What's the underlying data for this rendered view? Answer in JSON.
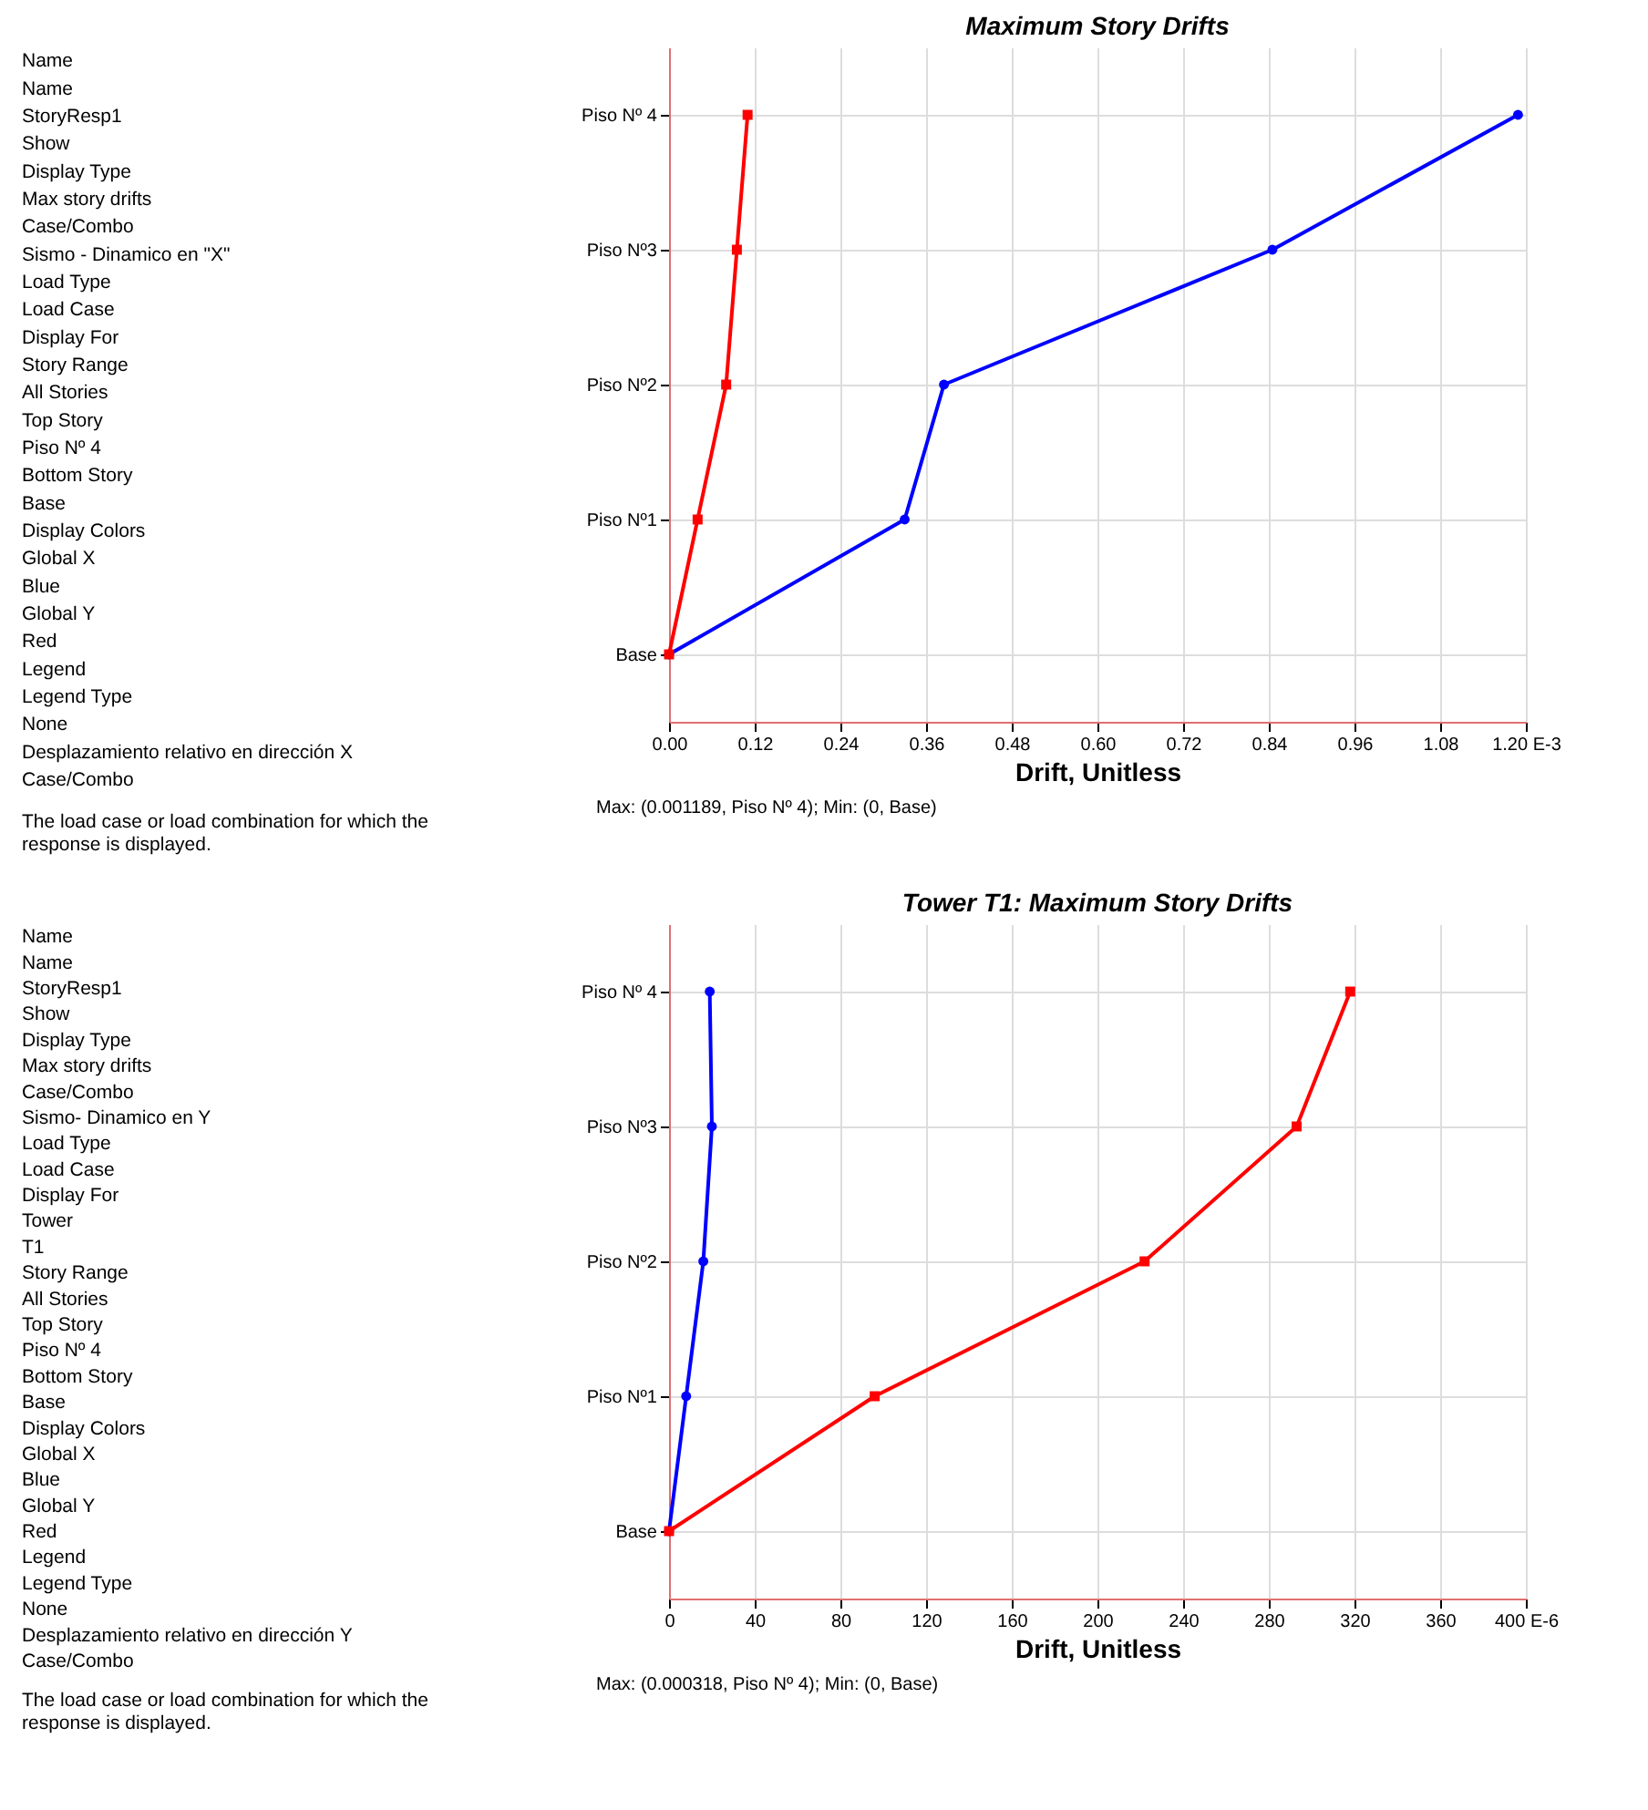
{
  "chart_data": [
    {
      "type": "other",
      "annotations": [
        "Name",
        "Name",
        "StoryResp1",
        "Show",
        "Display Type",
        "Max story drifts",
        "Case/Combo",
        "Sismo - Dinamico en \"X\"",
        "Load Type",
        "Load Case",
        "Display For",
        "Story Range",
        "All Stories",
        "Top Story",
        "Piso Nº 4",
        "Bottom Story",
        "Base",
        "Display Colors",
        "Global X",
        "Blue",
        "Global Y",
        "Red",
        "Legend",
        "Legend Type",
        "None",
        "Desplazamiento relativo en dirección X",
        "Case/Combo",
        "The load case or load combination for which the response is displayed."
      ]
    },
    {
      "type": "line",
      "title": "Maximum Story Drifts",
      "xlabel": "Drift, Unitless",
      "orientation": "horizontal",
      "categories": [
        "Piso Nº 4",
        "Piso Nº3",
        "Piso Nº2",
        "Piso Nº1",
        "Base"
      ],
      "series": [
        {
          "color": "#0000ff",
          "marker": "circle",
          "values": [
            1.189,
            0.845,
            0.385,
            0.33,
            0
          ]
        },
        {
          "color": "#ff0000",
          "marker": "square",
          "values": [
            0.11,
            0.095,
            0.08,
            0.04,
            0
          ]
        }
      ],
      "xlim": [
        0,
        1.2
      ],
      "xticks": [
        {
          "value": 0,
          "label": "0.00"
        },
        {
          "value": 0.12,
          "label": "0.12"
        },
        {
          "value": 0.24,
          "label": "0.24"
        },
        {
          "value": 0.36,
          "label": "0.36"
        },
        {
          "value": 0.48,
          "label": "0.48"
        },
        {
          "value": 0.6,
          "label": "0.60"
        },
        {
          "value": 0.72,
          "label": "0.72"
        },
        {
          "value": 0.84,
          "label": "0.84"
        },
        {
          "value": 0.96,
          "label": "0.96"
        },
        {
          "value": 1.08,
          "label": "1.08"
        },
        {
          "value": 1.2,
          "label": "1.20 E-3"
        }
      ],
      "grid": true,
      "annotations": [
        "Max: (0.001189, Piso Nº 4);  Min: (0, Base)"
      ]
    },
    {
      "type": "other",
      "annotations": [
        "Name",
        "Name",
        "StoryResp1",
        "Show",
        "Display Type",
        "Max story drifts",
        "Case/Combo",
        "Sismo- Dinamico en Y",
        "Load Type",
        "Load Case",
        "Display For",
        "Tower",
        "T1",
        "Story Range",
        "All Stories",
        "Top Story",
        "Piso Nº 4",
        "Bottom Story",
        "Base",
        "Display Colors",
        "Global X",
        "Blue",
        "Global Y",
        "Red",
        "Legend",
        "Legend Type",
        "None",
        "Desplazamiento relativo en dirección Y",
        "Case/Combo",
        "The load case or load combination for which the response is displayed."
      ]
    },
    {
      "type": "line",
      "title": "Tower T1:  Maximum Story Drifts",
      "xlabel": "Drift, Unitless",
      "orientation": "horizontal",
      "categories": [
        "Piso Nº 4",
        "Piso Nº3",
        "Piso Nº2",
        "Piso Nº1",
        "Base"
      ],
      "series": [
        {
          "color": "#0000ff",
          "marker": "circle",
          "values": [
            19,
            20,
            16,
            8,
            0
          ]
        },
        {
          "color": "#ff0000",
          "marker": "square",
          "values": [
            318,
            293,
            222,
            96,
            0
          ]
        }
      ],
      "xlim": [
        0,
        400
      ],
      "xticks": [
        0,
        40,
        80,
        120,
        160,
        200,
        240,
        280,
        320,
        360,
        {
          "value": 400,
          "label": "400 E-6"
        }
      ],
      "grid": true,
      "annotations": [
        "Max: (0.000318, Piso Nº 4);  Min: (0, Base)"
      ]
    }
  ]
}
